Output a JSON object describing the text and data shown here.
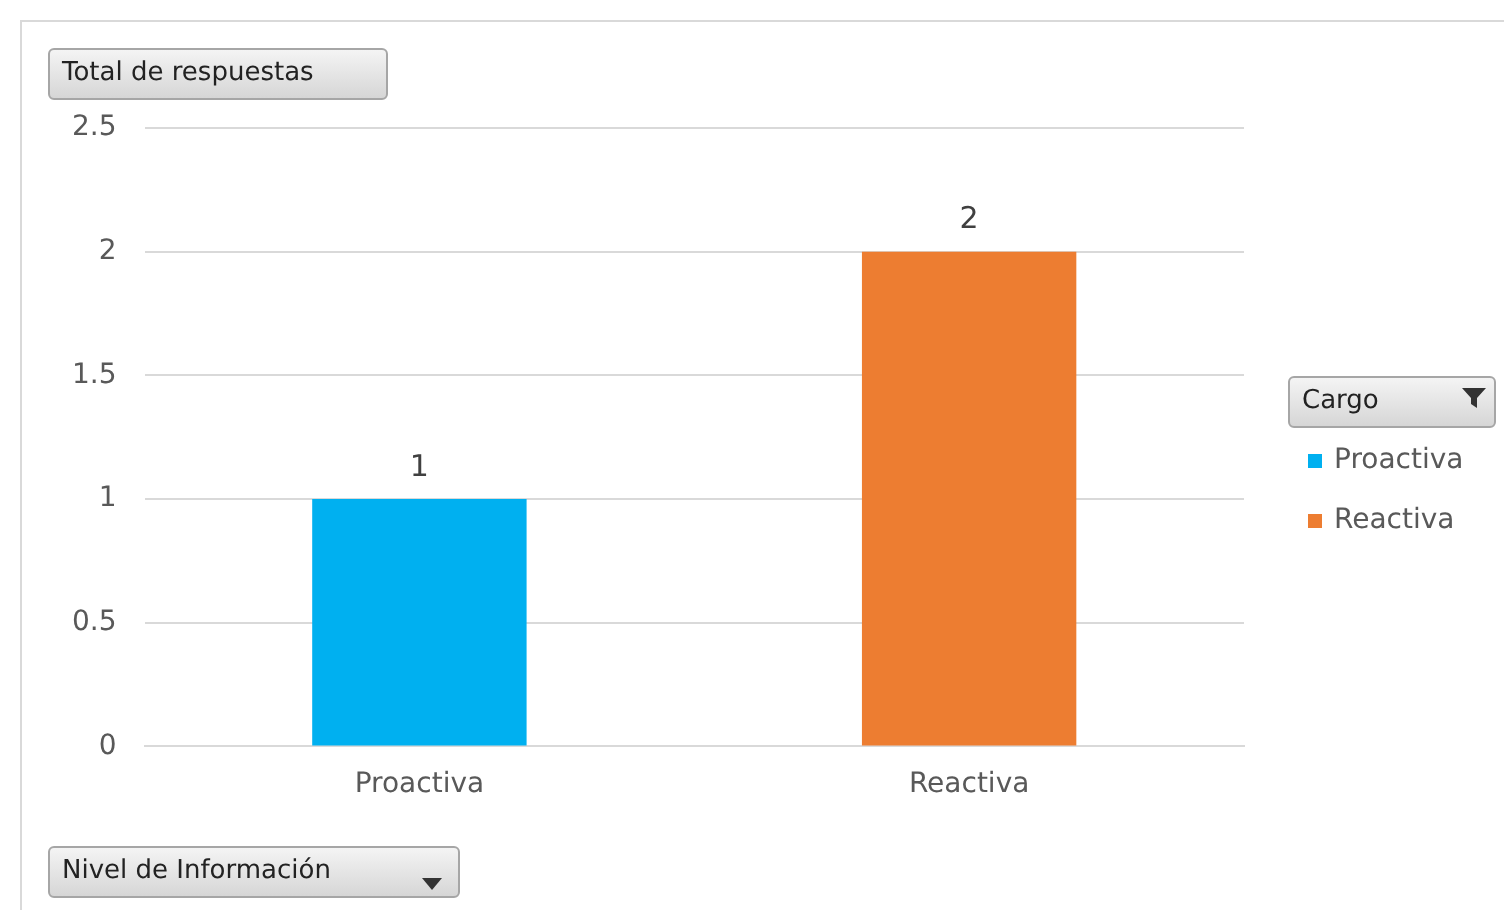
{
  "chart_data": {
    "type": "bar",
    "ylabel": "Total de respuestas",
    "xlabel": "Nivel de Información",
    "legend_title": "Cargo",
    "categories": [
      "Proactiva",
      "Reactiva"
    ],
    "series": [
      {
        "name": "Proactiva",
        "color": "#00b0f0",
        "values": [
          1,
          null
        ]
      },
      {
        "name": "Reactiva",
        "color": "#ed7d31",
        "values": [
          null,
          2
        ]
      }
    ],
    "stacked": true,
    "ylim": [
      0,
      2.5
    ],
    "yticks": [
      0,
      0.5,
      1,
      1.5,
      2,
      2.5
    ],
    "grid": "y",
    "legend": "right",
    "data_labels": true
  }
}
